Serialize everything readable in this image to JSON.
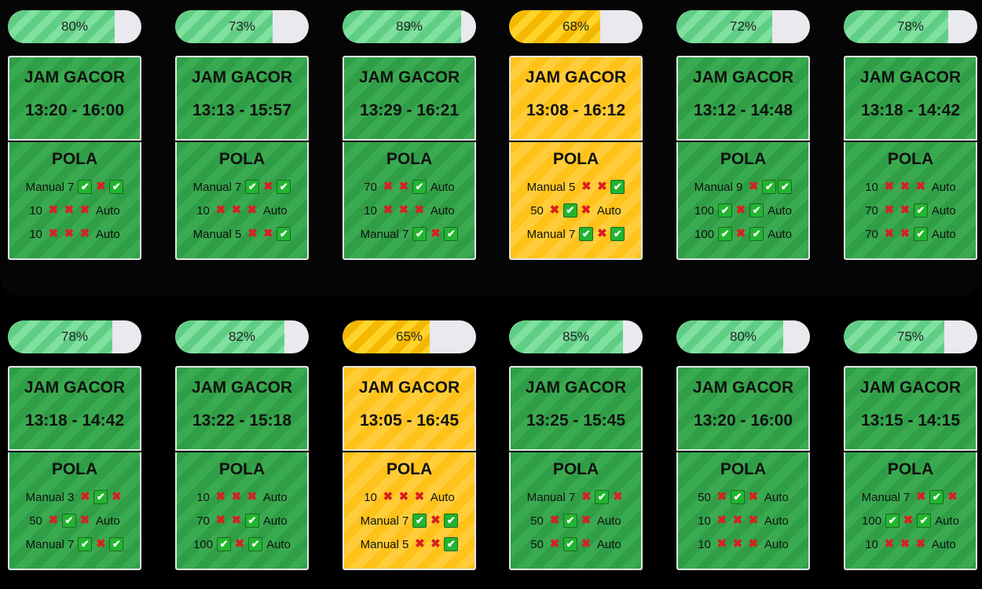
{
  "colors": {
    "green": "#2f9e46",
    "yellow": "#ffc21a",
    "progress_green": "#6fd891",
    "progress_yellow": "#ffc800"
  },
  "cards": [
    {
      "progress": "80%",
      "progress_value": 80,
      "theme": "green",
      "title": "JAM GACOR",
      "time": "13:20 - 16:00",
      "pola_title": "POLA",
      "lines": [
        {
          "label": "Manual 7",
          "icons": [
            "check",
            "cross",
            "check"
          ],
          "suffix": ""
        },
        {
          "label": "10",
          "icons": [
            "cross",
            "cross",
            "cross"
          ],
          "suffix": "Auto"
        },
        {
          "label": "10",
          "icons": [
            "cross",
            "cross",
            "cross"
          ],
          "suffix": "Auto"
        }
      ]
    },
    {
      "progress": "73%",
      "progress_value": 73,
      "theme": "green",
      "title": "JAM GACOR",
      "time": "13:13 - 15:57",
      "pola_title": "POLA",
      "lines": [
        {
          "label": "Manual 7",
          "icons": [
            "check",
            "cross",
            "check"
          ],
          "suffix": ""
        },
        {
          "label": "10",
          "icons": [
            "cross",
            "cross",
            "cross"
          ],
          "suffix": "Auto"
        },
        {
          "label": "Manual 5",
          "icons": [
            "cross",
            "cross",
            "check"
          ],
          "suffix": ""
        }
      ]
    },
    {
      "progress": "89%",
      "progress_value": 89,
      "theme": "green",
      "title": "JAM GACOR",
      "time": "13:29 - 16:21",
      "pola_title": "POLA",
      "lines": [
        {
          "label": "70",
          "icons": [
            "cross",
            "cross",
            "check"
          ],
          "suffix": "Auto"
        },
        {
          "label": "10",
          "icons": [
            "cross",
            "cross",
            "cross"
          ],
          "suffix": "Auto"
        },
        {
          "label": "Manual 7",
          "icons": [
            "check",
            "cross",
            "check"
          ],
          "suffix": ""
        }
      ]
    },
    {
      "progress": "68%",
      "progress_value": 68,
      "theme": "yellow",
      "title": "JAM GACOR",
      "time": "13:08 - 16:12",
      "pola_title": "POLA",
      "lines": [
        {
          "label": "Manual 5",
          "icons": [
            "cross",
            "cross",
            "check"
          ],
          "suffix": ""
        },
        {
          "label": "50",
          "icons": [
            "cross",
            "check",
            "cross"
          ],
          "suffix": "Auto"
        },
        {
          "label": "Manual 7",
          "icons": [
            "check",
            "cross",
            "check"
          ],
          "suffix": ""
        }
      ]
    },
    {
      "progress": "72%",
      "progress_value": 72,
      "theme": "green",
      "title": "JAM GACOR",
      "time": "13:12 - 14:48",
      "pola_title": "POLA",
      "lines": [
        {
          "label": "Manual 9",
          "icons": [
            "cross",
            "check",
            "check"
          ],
          "suffix": ""
        },
        {
          "label": "100",
          "icons": [
            "check",
            "cross",
            "check"
          ],
          "suffix": "Auto"
        },
        {
          "label": "100",
          "icons": [
            "check",
            "cross",
            "check"
          ],
          "suffix": "Auto"
        }
      ]
    },
    {
      "progress": "78%",
      "progress_value": 78,
      "theme": "green",
      "title": "JAM GACOR",
      "time": "13:18 - 14:42",
      "pola_title": "POLA",
      "lines": [
        {
          "label": "10",
          "icons": [
            "cross",
            "cross",
            "cross"
          ],
          "suffix": "Auto"
        },
        {
          "label": "70",
          "icons": [
            "cross",
            "cross",
            "check"
          ],
          "suffix": "Auto"
        },
        {
          "label": "70",
          "icons": [
            "cross",
            "cross",
            "check"
          ],
          "suffix": "Auto"
        }
      ]
    },
    {
      "progress": "78%",
      "progress_value": 78,
      "theme": "green",
      "title": "JAM GACOR",
      "time": "13:18 - 14:42",
      "pola_title": "POLA",
      "lines": [
        {
          "label": "Manual 3",
          "icons": [
            "cross",
            "check",
            "cross"
          ],
          "suffix": ""
        },
        {
          "label": "50",
          "icons": [
            "cross",
            "check",
            "cross"
          ],
          "suffix": "Auto"
        },
        {
          "label": "Manual 7",
          "icons": [
            "check",
            "cross",
            "check"
          ],
          "suffix": ""
        }
      ]
    },
    {
      "progress": "82%",
      "progress_value": 82,
      "theme": "green",
      "title": "JAM GACOR",
      "time": "13:22 - 15:18",
      "pola_title": "POLA",
      "lines": [
        {
          "label": "10",
          "icons": [
            "cross",
            "cross",
            "cross"
          ],
          "suffix": "Auto"
        },
        {
          "label": "70",
          "icons": [
            "cross",
            "cross",
            "check"
          ],
          "suffix": "Auto"
        },
        {
          "label": "100",
          "icons": [
            "check",
            "cross",
            "check"
          ],
          "suffix": "Auto"
        }
      ]
    },
    {
      "progress": "65%",
      "progress_value": 65,
      "theme": "yellow",
      "title": "JAM GACOR",
      "time": "13:05 - 16:45",
      "pola_title": "POLA",
      "lines": [
        {
          "label": "10",
          "icons": [
            "cross",
            "cross",
            "cross"
          ],
          "suffix": "Auto"
        },
        {
          "label": "Manual 7",
          "icons": [
            "check",
            "cross",
            "check"
          ],
          "suffix": ""
        },
        {
          "label": "Manual 5",
          "icons": [
            "cross",
            "cross",
            "check"
          ],
          "suffix": ""
        }
      ]
    },
    {
      "progress": "85%",
      "progress_value": 85,
      "theme": "green",
      "title": "JAM GACOR",
      "time": "13:25 - 15:45",
      "pola_title": "POLA",
      "lines": [
        {
          "label": "Manual 7",
          "icons": [
            "cross",
            "check",
            "cross"
          ],
          "suffix": ""
        },
        {
          "label": "50",
          "icons": [
            "cross",
            "check",
            "cross"
          ],
          "suffix": "Auto"
        },
        {
          "label": "50",
          "icons": [
            "cross",
            "check",
            "cross"
          ],
          "suffix": "Auto"
        }
      ]
    },
    {
      "progress": "80%",
      "progress_value": 80,
      "theme": "green",
      "title": "JAM GACOR",
      "time": "13:20 - 16:00",
      "pola_title": "POLA",
      "lines": [
        {
          "label": "50",
          "icons": [
            "cross",
            "check",
            "cross"
          ],
          "suffix": "Auto"
        },
        {
          "label": "10",
          "icons": [
            "cross",
            "cross",
            "cross"
          ],
          "suffix": "Auto"
        },
        {
          "label": "10",
          "icons": [
            "cross",
            "cross",
            "cross"
          ],
          "suffix": "Auto"
        }
      ]
    },
    {
      "progress": "75%",
      "progress_value": 75,
      "theme": "green",
      "title": "JAM GACOR",
      "time": "13:15 - 14:15",
      "pola_title": "POLA",
      "lines": [
        {
          "label": "Manual 7",
          "icons": [
            "cross",
            "check",
            "cross"
          ],
          "suffix": ""
        },
        {
          "label": "100",
          "icons": [
            "check",
            "cross",
            "check"
          ],
          "suffix": "Auto"
        },
        {
          "label": "10",
          "icons": [
            "cross",
            "cross",
            "cross"
          ],
          "suffix": "Auto"
        }
      ]
    }
  ]
}
